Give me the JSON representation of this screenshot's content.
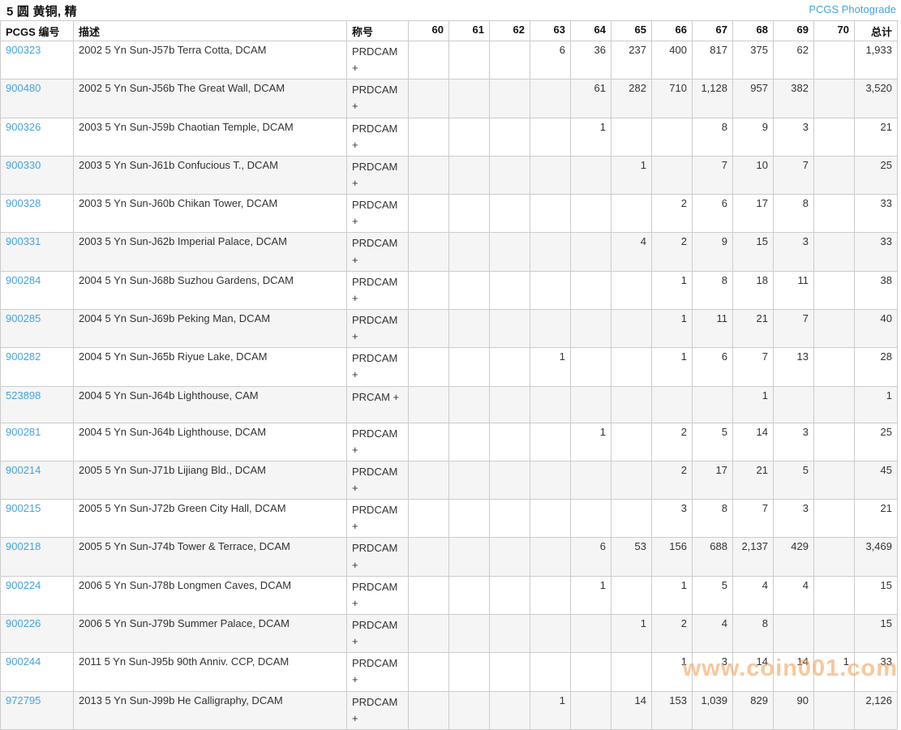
{
  "page": {
    "title": "5 圆 黄铜, 精",
    "photograde_link": "PCGS Photograde",
    "watermark": "www.coin001.com"
  },
  "colors": {
    "link": "#45a4de",
    "border": "#cccccc",
    "stripe": "#f5f5f5",
    "text": "#333333",
    "heading": "#111111",
    "watermark_orange": "#f2994a"
  },
  "table": {
    "headers": {
      "pcgs_no": "PCGS 编号",
      "description": "描述",
      "designation": "称号",
      "grades": [
        "60",
        "61",
        "62",
        "63",
        "64",
        "65",
        "66",
        "67",
        "68",
        "69",
        "70"
      ],
      "total": "总计"
    },
    "rows": [
      {
        "pcgs_no": "900323",
        "description": "2002 5 Yn Sun-J57b Terra Cotta, DCAM",
        "designation": "PRDCAM +",
        "grades": {
          "63": "6",
          "64": "36",
          "65": "237",
          "66": "400",
          "67": "817",
          "68": "375",
          "69": "62"
        },
        "total": "1,933"
      },
      {
        "pcgs_no": "900480",
        "description": "2002 5 Yn Sun-J56b The Great Wall, DCAM",
        "designation": "PRDCAM +",
        "grades": {
          "64": "61",
          "65": "282",
          "66": "710",
          "67": "1,128",
          "68": "957",
          "69": "382"
        },
        "total": "3,520"
      },
      {
        "pcgs_no": "900326",
        "description": "2003 5 Yn Sun-J59b Chaotian Temple, DCAM",
        "designation": "PRDCAM +",
        "grades": {
          "64": "1",
          "67": "8",
          "68": "9",
          "69": "3"
        },
        "total": "21"
      },
      {
        "pcgs_no": "900330",
        "description": "2003 5 Yn Sun-J61b Confucious T., DCAM",
        "designation": "PRDCAM +",
        "grades": {
          "65": "1",
          "67": "7",
          "68": "10",
          "69": "7"
        },
        "total": "25"
      },
      {
        "pcgs_no": "900328",
        "description": "2003 5 Yn Sun-J60b Chikan Tower, DCAM",
        "designation": "PRDCAM +",
        "grades": {
          "66": "2",
          "67": "6",
          "68": "17",
          "69": "8"
        },
        "total": "33"
      },
      {
        "pcgs_no": "900331",
        "description": "2003 5 Yn Sun-J62b Imperial Palace, DCAM",
        "designation": "PRDCAM +",
        "grades": {
          "65": "4",
          "66": "2",
          "67": "9",
          "68": "15",
          "69": "3"
        },
        "total": "33"
      },
      {
        "pcgs_no": "900284",
        "description": "2004 5 Yn Sun-J68b Suzhou Gardens, DCAM",
        "designation": "PRDCAM +",
        "grades": {
          "66": "1",
          "67": "8",
          "68": "18",
          "69": "11"
        },
        "total": "38"
      },
      {
        "pcgs_no": "900285",
        "description": "2004 5 Yn Sun-J69b Peking Man, DCAM",
        "designation": "PRDCAM +",
        "grades": {
          "66": "1",
          "67": "11",
          "68": "21",
          "69": "7"
        },
        "total": "40"
      },
      {
        "pcgs_no": "900282",
        "description": "2004 5 Yn Sun-J65b Riyue Lake, DCAM",
        "designation": "PRDCAM +",
        "grades": {
          "63": "1",
          "66": "1",
          "67": "6",
          "68": "7",
          "69": "13"
        },
        "total": "28"
      },
      {
        "pcgs_no": "523898",
        "description": "2004 5 Yn Sun-J64b Lighthouse, CAM",
        "designation": "PRCAM +",
        "grades": {
          "68": "1"
        },
        "total": "1"
      },
      {
        "pcgs_no": "900281",
        "description": "2004 5 Yn Sun-J64b Lighthouse, DCAM",
        "designation": "PRDCAM +",
        "grades": {
          "64": "1",
          "66": "2",
          "67": "5",
          "68": "14",
          "69": "3"
        },
        "total": "25"
      },
      {
        "pcgs_no": "900214",
        "description": "2005 5 Yn Sun-J71b Lijiang Bld., DCAM",
        "designation": "PRDCAM +",
        "grades": {
          "66": "2",
          "67": "17",
          "68": "21",
          "69": "5"
        },
        "total": "45"
      },
      {
        "pcgs_no": "900215",
        "description": "2005 5 Yn Sun-J72b Green City Hall, DCAM",
        "designation": "PRDCAM +",
        "grades": {
          "66": "3",
          "67": "8",
          "68": "7",
          "69": "3"
        },
        "total": "21"
      },
      {
        "pcgs_no": "900218",
        "description": "2005 5 Yn Sun-J74b Tower & Terrace, DCAM",
        "designation": "PRDCAM +",
        "grades": {
          "64": "6",
          "65": "53",
          "66": "156",
          "67": "688",
          "68": "2,137",
          "69": "429"
        },
        "total": "3,469"
      },
      {
        "pcgs_no": "900224",
        "description": "2006 5 Yn Sun-J78b Longmen Caves, DCAM",
        "designation": "PRDCAM +",
        "grades": {
          "64": "1",
          "66": "1",
          "67": "5",
          "68": "4",
          "69": "4"
        },
        "total": "15"
      },
      {
        "pcgs_no": "900226",
        "description": "2006 5 Yn Sun-J79b Summer Palace, DCAM",
        "designation": "PRDCAM +",
        "grades": {
          "65": "1",
          "66": "2",
          "67": "4",
          "68": "8"
        },
        "total": "15"
      },
      {
        "pcgs_no": "900244",
        "description": "2011 5 Yn Sun-J95b 90th Anniv. CCP, DCAM",
        "designation": "PRDCAM +",
        "grades": {
          "66": "1",
          "67": "3",
          "68": "14",
          "69": "14",
          "70": "1"
        },
        "total": "33"
      },
      {
        "pcgs_no": "972795",
        "description": "2013 5 Yn Sun-J99b He Calligraphy, DCAM",
        "designation": "PRDCAM +",
        "grades": {
          "63": "1",
          "65": "14",
          "66": "153",
          "67": "1,039",
          "68": "829",
          "69": "90"
        },
        "total": "2,126"
      }
    ]
  }
}
